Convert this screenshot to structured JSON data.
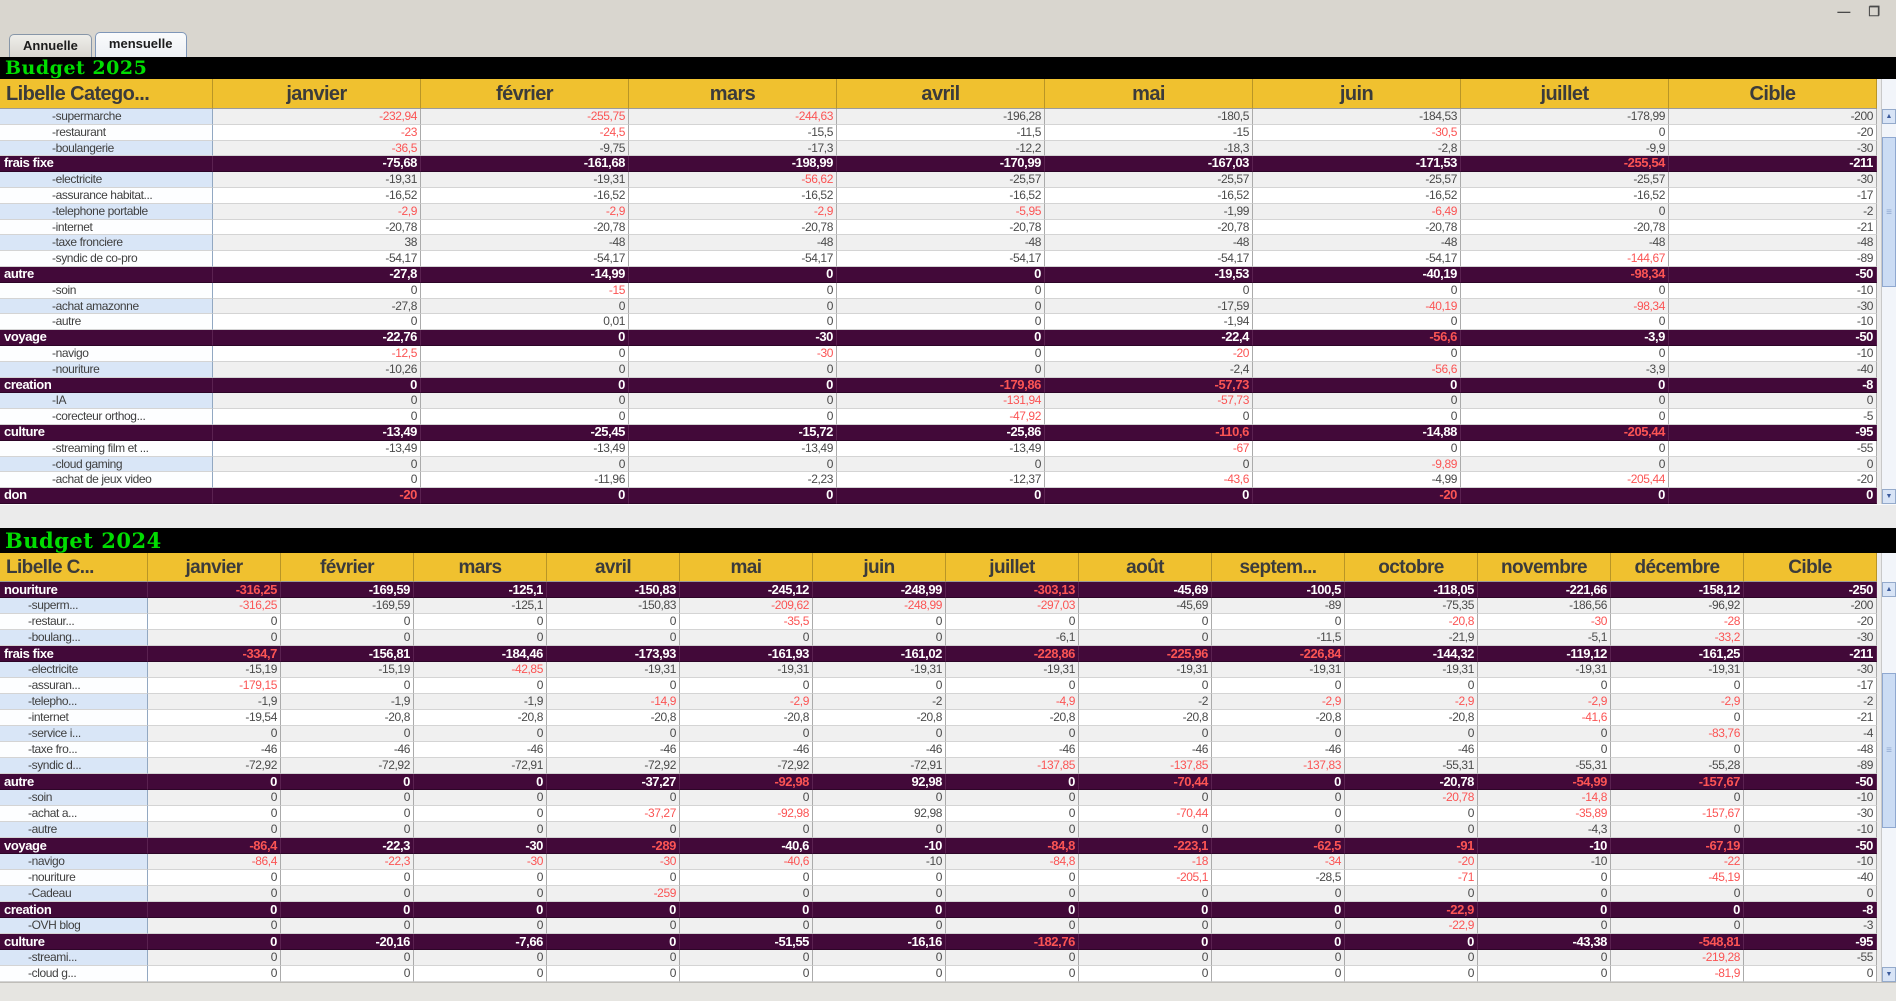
{
  "window": {
    "minimize_glyph": "—",
    "maximize_glyph": "❐"
  },
  "tabs": [
    {
      "label": "Annuelle",
      "selected": false
    },
    {
      "label": "mensuelle",
      "selected": true
    }
  ],
  "icons": {
    "scroll_up": "▲",
    "scroll_down": "▼",
    "thumb_grip": "≡"
  },
  "colors": {
    "header_yellow": "#F0C12F",
    "category_purple": "#420939",
    "negative_red": "#FB5454",
    "title_green": "#00DD00",
    "stripe_blue": "#D9E6F7",
    "stripe_gray": "#F0F0F0"
  },
  "tables": [
    {
      "title": "Budget 2025",
      "columns": [
        "Libelle Catego...",
        "janvier",
        "février",
        "mars",
        "avril",
        "mai",
        "juin",
        "juillet",
        "Cible"
      ],
      "rows": [
        {
          "label": "-supermarche",
          "cat": false,
          "cells": [
            "-232,94",
            "-255,75",
            "-244,63",
            "-196,28",
            "-180,5",
            "-184,53",
            "-178,99",
            "-200"
          ],
          "red": [
            0,
            1,
            2
          ]
        },
        {
          "label": "-restaurant",
          "cat": false,
          "cells": [
            "-23",
            "-24,5",
            "-15,5",
            "-11,5",
            "-15",
            "-30,5",
            "0",
            "-20"
          ],
          "red": [
            0,
            1,
            5
          ]
        },
        {
          "label": "-boulangerie",
          "cat": false,
          "cells": [
            "-36,5",
            "-9,75",
            "-17,3",
            "-12,2",
            "-18,3",
            "-2,8",
            "-9,9",
            "-30"
          ],
          "red": [
            0
          ]
        },
        {
          "label": "frais fixe",
          "cat": true,
          "cells": [
            "-75,68",
            "-161,68",
            "-198,99",
            "-170,99",
            "-167,03",
            "-171,53",
            "-255,54",
            "-211"
          ],
          "red": [
            6
          ]
        },
        {
          "label": "-electricite",
          "cat": false,
          "cells": [
            "-19,31",
            "-19,31",
            "-56,62",
            "-25,57",
            "-25,57",
            "-25,57",
            "-25,57",
            "-30"
          ],
          "red": [
            2
          ]
        },
        {
          "label": "-assurance habitat...",
          "cat": false,
          "cells": [
            "-16,52",
            "-16,52",
            "-16,52",
            "-16,52",
            "-16,52",
            "-16,52",
            "-16,52",
            "-17"
          ],
          "red": []
        },
        {
          "label": "-telephone portable",
          "cat": false,
          "cells": [
            "-2,9",
            "-2,9",
            "-2,9",
            "-5,95",
            "-1,99",
            "-6,49",
            "0",
            "-2"
          ],
          "red": [
            0,
            1,
            2,
            3,
            5
          ]
        },
        {
          "label": "-internet",
          "cat": false,
          "cells": [
            "-20,78",
            "-20,78",
            "-20,78",
            "-20,78",
            "-20,78",
            "-20,78",
            "-20,78",
            "-21"
          ],
          "red": []
        },
        {
          "label": "-taxe fronciere",
          "cat": false,
          "cells": [
            "38",
            "-48",
            "-48",
            "-48",
            "-48",
            "-48",
            "-48",
            "-48"
          ],
          "red": []
        },
        {
          "label": "-syndic de co-pro",
          "cat": false,
          "cells": [
            "-54,17",
            "-54,17",
            "-54,17",
            "-54,17",
            "-54,17",
            "-54,17",
            "-144,67",
            "-89"
          ],
          "red": [
            6
          ]
        },
        {
          "label": "autre",
          "cat": true,
          "cells": [
            "-27,8",
            "-14,99",
            "0",
            "0",
            "-19,53",
            "-40,19",
            "-98,34",
            "-50"
          ],
          "red": [
            6
          ]
        },
        {
          "label": "-soin",
          "cat": false,
          "cells": [
            "0",
            "-15",
            "0",
            "0",
            "0",
            "0",
            "0",
            "-10"
          ],
          "red": [
            1
          ]
        },
        {
          "label": "-achat amazonne",
          "cat": false,
          "cells": [
            "-27,8",
            "0",
            "0",
            "0",
            "-17,59",
            "-40,19",
            "-98,34",
            "-30"
          ],
          "red": [
            5,
            6
          ]
        },
        {
          "label": "-autre",
          "cat": false,
          "cells": [
            "0",
            "0,01",
            "0",
            "0",
            "-1,94",
            "0",
            "0",
            "-10"
          ],
          "red": []
        },
        {
          "label": "voyage",
          "cat": true,
          "cells": [
            "-22,76",
            "0",
            "-30",
            "0",
            "-22,4",
            "-56,6",
            "-3,9",
            "-50"
          ],
          "red": [
            5
          ]
        },
        {
          "label": "-navigo",
          "cat": false,
          "cells": [
            "-12,5",
            "0",
            "-30",
            "0",
            "-20",
            "0",
            "0",
            "-10"
          ],
          "red": [
            0,
            2,
            4
          ]
        },
        {
          "label": "-nouriture",
          "cat": false,
          "cells": [
            "-10,26",
            "0",
            "0",
            "0",
            "-2,4",
            "-56,6",
            "-3,9",
            "-40"
          ],
          "red": [
            5
          ]
        },
        {
          "label": "creation",
          "cat": true,
          "cells": [
            "0",
            "0",
            "0",
            "-179,86",
            "-57,73",
            "0",
            "0",
            "-8"
          ],
          "red": [
            3,
            4
          ]
        },
        {
          "label": "-IA",
          "cat": false,
          "cells": [
            "0",
            "0",
            "0",
            "-131,94",
            "-57,73",
            "0",
            "0",
            "0"
          ],
          "red": [
            3,
            4
          ]
        },
        {
          "label": "-corecteur orthog...",
          "cat": false,
          "cells": [
            "0",
            "0",
            "0",
            "-47,92",
            "0",
            "0",
            "0",
            "-5"
          ],
          "red": [
            3
          ]
        },
        {
          "label": "culture",
          "cat": true,
          "cells": [
            "-13,49",
            "-25,45",
            "-15,72",
            "-25,86",
            "-110,6",
            "-14,88",
            "-205,44",
            "-95"
          ],
          "red": [
            4,
            6
          ]
        },
        {
          "label": "-streaming film et ...",
          "cat": false,
          "cells": [
            "-13,49",
            "-13,49",
            "-13,49",
            "-13,49",
            "-67",
            "0",
            "0",
            "-55"
          ],
          "red": [
            4
          ]
        },
        {
          "label": "-cloud gaming",
          "cat": false,
          "cells": [
            "0",
            "0",
            "0",
            "0",
            "0",
            "-9,89",
            "0",
            "0"
          ],
          "red": [
            5
          ]
        },
        {
          "label": "-achat de jeux video",
          "cat": false,
          "cells": [
            "0",
            "-11,96",
            "-2,23",
            "-12,37",
            "-43,6",
            "-4,99",
            "-205,44",
            "-20"
          ],
          "red": [
            4,
            6
          ]
        },
        {
          "label": "don",
          "cat": true,
          "cells": [
            "-20",
            "0",
            "0",
            "0",
            "0",
            "-20",
            "0",
            "0"
          ],
          "red": [
            0,
            5
          ]
        }
      ]
    },
    {
      "title": "Budget 2024",
      "columns": [
        "Libelle C...",
        "janvier",
        "février",
        "mars",
        "avril",
        "mai",
        "juin",
        "juillet",
        "août",
        "septem...",
        "octobre",
        "novembre",
        "décembre",
        "Cible"
      ],
      "rows": [
        {
          "label": "nouriture",
          "cat": true,
          "cells": [
            "-316,25",
            "-169,59",
            "-125,1",
            "-150,83",
            "-245,12",
            "-248,99",
            "-303,13",
            "-45,69",
            "-100,5",
            "-118,05",
            "-221,66",
            "-158,12",
            "-250"
          ],
          "red": [
            0,
            6
          ]
        },
        {
          "label": "-superm...",
          "cat": false,
          "cells": [
            "-316,25",
            "-169,59",
            "-125,1",
            "-150,83",
            "-209,62",
            "-248,99",
            "-297,03",
            "-45,69",
            "-89",
            "-75,35",
            "-186,56",
            "-96,92",
            "-200"
          ],
          "red": [
            0,
            4,
            5,
            6
          ]
        },
        {
          "label": "-restaur...",
          "cat": false,
          "cells": [
            "0",
            "0",
            "0",
            "0",
            "-35,5",
            "0",
            "0",
            "0",
            "0",
            "-20,8",
            "-30",
            "-28",
            "-20"
          ],
          "red": [
            4,
            9,
            10,
            11
          ]
        },
        {
          "label": "-boulang...",
          "cat": false,
          "cells": [
            "0",
            "0",
            "0",
            "0",
            "0",
            "0",
            "-6,1",
            "0",
            "-11,5",
            "-21,9",
            "-5,1",
            "-33,2",
            "-30"
          ],
          "red": [
            11
          ]
        },
        {
          "label": "frais fixe",
          "cat": true,
          "cells": [
            "-334,7",
            "-156,81",
            "-184,46",
            "-173,93",
            "-161,93",
            "-161,02",
            "-228,86",
            "-225,96",
            "-226,84",
            "-144,32",
            "-119,12",
            "-161,25",
            "-211"
          ],
          "red": [
            0,
            6,
            7,
            8
          ]
        },
        {
          "label": "-electricite",
          "cat": false,
          "cells": [
            "-15,19",
            "-15,19",
            "-42,85",
            "-19,31",
            "-19,31",
            "-19,31",
            "-19,31",
            "-19,31",
            "-19,31",
            "-19,31",
            "-19,31",
            "-19,31",
            "-30"
          ],
          "red": [
            2
          ]
        },
        {
          "label": "-assuran...",
          "cat": false,
          "cells": [
            "-179,15",
            "0",
            "0",
            "0",
            "0",
            "0",
            "0",
            "0",
            "0",
            "0",
            "0",
            "0",
            "-17"
          ],
          "red": [
            0
          ]
        },
        {
          "label": "-telepho...",
          "cat": false,
          "cells": [
            "-1,9",
            "-1,9",
            "-1,9",
            "-14,9",
            "-2,9",
            "-2",
            "-4,9",
            "-2",
            "-2,9",
            "-2,9",
            "-2,9",
            "-2,9",
            "-2"
          ],
          "red": [
            3,
            4,
            6,
            8,
            9,
            10,
            11
          ]
        },
        {
          "label": "-internet",
          "cat": false,
          "cells": [
            "-19,54",
            "-20,8",
            "-20,8",
            "-20,8",
            "-20,8",
            "-20,8",
            "-20,8",
            "-20,8",
            "-20,8",
            "-20,8",
            "-41,6",
            "0",
            "-21"
          ],
          "red": [
            10
          ]
        },
        {
          "label": "-service i...",
          "cat": false,
          "cells": [
            "0",
            "0",
            "0",
            "0",
            "0",
            "0",
            "0",
            "0",
            "0",
            "0",
            "0",
            "-83,76",
            "-4"
          ],
          "red": [
            11
          ]
        },
        {
          "label": "-taxe fro...",
          "cat": false,
          "cells": [
            "-46",
            "-46",
            "-46",
            "-46",
            "-46",
            "-46",
            "-46",
            "-46",
            "-46",
            "-46",
            "0",
            "0",
            "-48"
          ],
          "red": []
        },
        {
          "label": "-syndic d...",
          "cat": false,
          "cells": [
            "-72,92",
            "-72,92",
            "-72,91",
            "-72,92",
            "-72,92",
            "-72,91",
            "-137,85",
            "-137,85",
            "-137,83",
            "-55,31",
            "-55,31",
            "-55,28",
            "-89"
          ],
          "red": [
            6,
            7,
            8
          ]
        },
        {
          "label": "autre",
          "cat": true,
          "cells": [
            "0",
            "0",
            "0",
            "-37,27",
            "-92,98",
            "92,98",
            "0",
            "-70,44",
            "0",
            "-20,78",
            "-54,99",
            "-157,67",
            "-50"
          ],
          "red": [
            4,
            7,
            10,
            11
          ]
        },
        {
          "label": "-soin",
          "cat": false,
          "cells": [
            "0",
            "0",
            "0",
            "0",
            "0",
            "0",
            "0",
            "0",
            "0",
            "-20,78",
            "-14,8",
            "0",
            "-10"
          ],
          "red": [
            9,
            10
          ]
        },
        {
          "label": "-achat a...",
          "cat": false,
          "cells": [
            "0",
            "0",
            "0",
            "-37,27",
            "-92,98",
            "92,98",
            "0",
            "-70,44",
            "0",
            "0",
            "-35,89",
            "-157,67",
            "-30"
          ],
          "red": [
            3,
            4,
            7,
            10,
            11
          ]
        },
        {
          "label": "-autre",
          "cat": false,
          "cells": [
            "0",
            "0",
            "0",
            "0",
            "0",
            "0",
            "0",
            "0",
            "0",
            "0",
            "-4,3",
            "0",
            "-10"
          ],
          "red": []
        },
        {
          "label": "voyage",
          "cat": true,
          "cells": [
            "-86,4",
            "-22,3",
            "-30",
            "-289",
            "-40,6",
            "-10",
            "-84,8",
            "-223,1",
            "-62,5",
            "-91",
            "-10",
            "-67,19",
            "-50"
          ],
          "red": [
            0,
            3,
            6,
            7,
            8,
            9,
            11
          ]
        },
        {
          "label": "-navigo",
          "cat": false,
          "cells": [
            "-86,4",
            "-22,3",
            "-30",
            "-30",
            "-40,6",
            "-10",
            "-84,8",
            "-18",
            "-34",
            "-20",
            "-10",
            "-22",
            "-10"
          ],
          "red": [
            0,
            1,
            2,
            3,
            4,
            6,
            7,
            8,
            9,
            11
          ]
        },
        {
          "label": "-nouriture",
          "cat": false,
          "cells": [
            "0",
            "0",
            "0",
            "0",
            "0",
            "0",
            "0",
            "-205,1",
            "-28,5",
            "-71",
            "0",
            "-45,19",
            "-40"
          ],
          "red": [
            7,
            9,
            11
          ]
        },
        {
          "label": "-Cadeau",
          "cat": false,
          "cells": [
            "0",
            "0",
            "0",
            "-259",
            "0",
            "0",
            "0",
            "0",
            "0",
            "0",
            "0",
            "0",
            "0"
          ],
          "red": [
            3
          ]
        },
        {
          "label": "creation",
          "cat": true,
          "cells": [
            "0",
            "0",
            "0",
            "0",
            "0",
            "0",
            "0",
            "0",
            "0",
            "-22,9",
            "0",
            "0",
            "-8"
          ],
          "red": [
            9
          ]
        },
        {
          "label": "-OVH blog",
          "cat": false,
          "cells": [
            "0",
            "0",
            "0",
            "0",
            "0",
            "0",
            "0",
            "0",
            "0",
            "-22,9",
            "0",
            "0",
            "-3"
          ],
          "red": [
            9
          ]
        },
        {
          "label": "culture",
          "cat": true,
          "cells": [
            "0",
            "-20,16",
            "-7,66",
            "0",
            "-51,55",
            "-16,16",
            "-182,76",
            "0",
            "0",
            "0",
            "-43,38",
            "-548,81",
            "-95"
          ],
          "red": [
            6,
            11
          ]
        },
        {
          "label": "-streami...",
          "cat": false,
          "cells": [
            "0",
            "0",
            "0",
            "0",
            "0",
            "0",
            "0",
            "0",
            "0",
            "0",
            "0",
            "-219,28",
            "-55"
          ],
          "red": [
            11
          ]
        },
        {
          "label": "-cloud g...",
          "cat": false,
          "cells": [
            "0",
            "0",
            "0",
            "0",
            "0",
            "0",
            "0",
            "0",
            "0",
            "0",
            "0",
            "-81,9",
            "0"
          ],
          "red": [
            11
          ]
        }
      ]
    }
  ]
}
